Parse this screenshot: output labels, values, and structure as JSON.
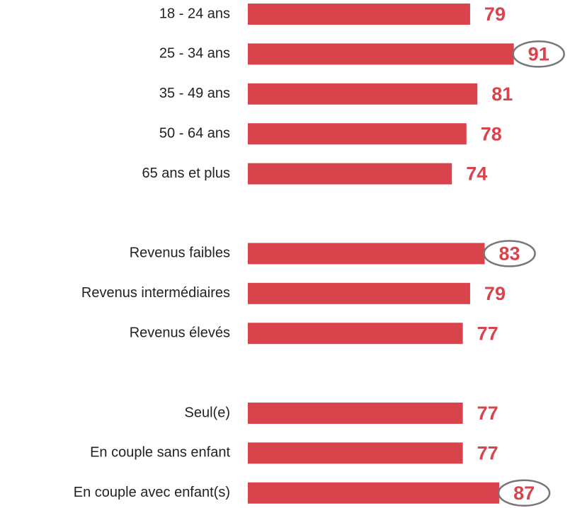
{
  "chart_data": {
    "type": "bar",
    "orientation": "horizontal",
    "categories": [
      "18 - 24 ans",
      "25 - 34 ans",
      "35 - 49 ans",
      "50 - 64 ans",
      "65 ans et plus",
      null,
      "Revenus faibles",
      "Revenus intermédiaires",
      "Revenus élevés",
      null,
      "Seul(e)",
      "En couple sans enfant",
      "En couple avec enfant(s)"
    ],
    "values": [
      79,
      91,
      81,
      78,
      74,
      null,
      83,
      79,
      77,
      null,
      77,
      77,
      87
    ],
    "color": "#d9434b",
    "highlight": [
      1,
      6,
      12
    ],
    "xlim": [
      18,
      100
    ]
  }
}
